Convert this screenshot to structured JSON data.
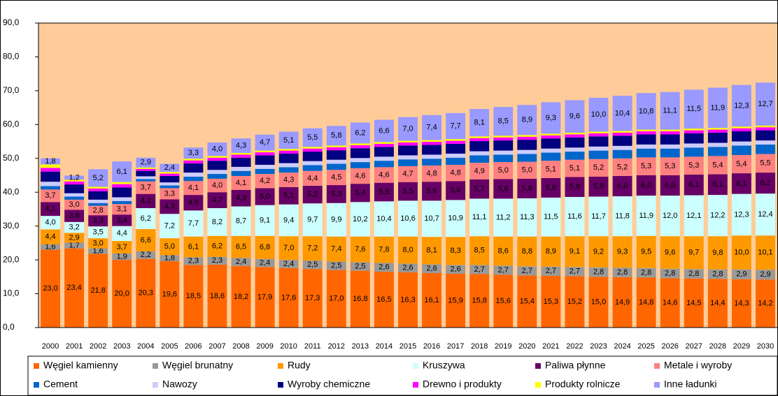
{
  "chart_data": {
    "type": "stacked_bar",
    "categories": [
      "2000",
      "2001",
      "2002",
      "2003",
      "2004",
      "2005",
      "2006",
      "2007",
      "2008",
      "2009",
      "2010",
      "2011",
      "2012",
      "2013",
      "2014",
      "2015",
      "2016",
      "2017",
      "2018",
      "2019",
      "2020",
      "2021",
      "2022",
      "2023",
      "2024",
      "2025",
      "2026",
      "2027",
      "2028",
      "2029",
      "2030"
    ],
    "ylim": [
      0,
      90
    ],
    "yticks": [
      {
        "value": 0,
        "label": "0,0"
      },
      {
        "value": 10,
        "label": "10,0"
      },
      {
        "value": 20,
        "label": "20,0"
      },
      {
        "value": 30,
        "label": "30,0"
      },
      {
        "value": 40,
        "label": "40,0"
      },
      {
        "value": 50,
        "label": "50,0"
      },
      {
        "value": 60,
        "label": "60,0"
      },
      {
        "value": 70,
        "label": "70,0"
      },
      {
        "value": 80,
        "label": "80,0"
      },
      {
        "value": 90,
        "label": "90,0"
      }
    ],
    "plot_background": "#ffcc99",
    "legend": "bottom",
    "series": [
      {
        "name": "Węgiel kamienny",
        "color": "#ff6600",
        "values": [
          23.0,
          23.4,
          21.8,
          20.0,
          20.3,
          19.6,
          18.5,
          18.6,
          18.2,
          17.9,
          17.6,
          17.3,
          17.0,
          16.8,
          16.5,
          16.3,
          16.1,
          15.9,
          15.8,
          15.6,
          15.4,
          15.3,
          15.2,
          15.0,
          14.9,
          14.8,
          14.6,
          14.5,
          14.4,
          14.3,
          14.2
        ],
        "value_labels": [
          "23,0",
          "23,4",
          "21,8",
          "20,0",
          "20,3",
          "19,6",
          "18,5",
          "18,6",
          "18,2",
          "17,9",
          "17,6",
          "17,3",
          "17,0",
          "16,8",
          "16,5",
          "16,3",
          "16,1",
          "15,9",
          "15,8",
          "15,6",
          "15,4",
          "15,3",
          "15,2",
          "15,0",
          "14,9",
          "14,8",
          "14,6",
          "14,5",
          "14,4",
          "14,3",
          "14,2"
        ]
      },
      {
        "name": "Węgiel brunatny",
        "color": "#999999",
        "values": [
          1.6,
          1.7,
          1.6,
          1.9,
          2.2,
          1.8,
          2.3,
          2.3,
          2.4,
          2.4,
          2.4,
          2.5,
          2.5,
          2.5,
          2.6,
          2.6,
          2.6,
          2.6,
          2.7,
          2.7,
          2.7,
          2.7,
          2.7,
          2.8,
          2.8,
          2.8,
          2.8,
          2.8,
          2.8,
          2.9,
          2.9
        ],
        "value_labels": [
          "1,6",
          "1,7",
          "1,6",
          "1,9",
          "2,2",
          "1,8",
          "2,3",
          "2,3",
          "2,4",
          "2,4",
          "2,4",
          "2,5",
          "2,5",
          "2,5",
          "2,6",
          "2,6",
          "2,6",
          "2,6",
          "2,7",
          "2,7",
          "2,7",
          "2,7",
          "2,7",
          "2,8",
          "2,8",
          "2,8",
          "2,8",
          "2,8",
          "2,8",
          "2,9",
          "2,9"
        ]
      },
      {
        "name": "Rudy",
        "color": "#ff9900",
        "values": [
          4.4,
          2.9,
          3.0,
          3.7,
          6.6,
          5.0,
          6.1,
          6.2,
          6.5,
          6.8,
          7.0,
          7.2,
          7.4,
          7.6,
          7.8,
          8.0,
          8.1,
          8.3,
          8.5,
          8.6,
          8.8,
          8.9,
          9.1,
          9.2,
          9.3,
          9.5,
          9.6,
          9.7,
          9.8,
          10.0,
          10.1
        ],
        "value_labels": [
          "4,4",
          "2,9",
          "3,0",
          "3,7",
          "6,6",
          "5,0",
          "6,1",
          "6,2",
          "6,5",
          "6,8",
          "7,0",
          "7,2",
          "7,4",
          "7,6",
          "7,8",
          "8,0",
          "8,1",
          "8,3",
          "8,5",
          "8,6",
          "8,8",
          "8,9",
          "9,1",
          "9,2",
          "9,3",
          "9,5",
          "9,6",
          "9,7",
          "9,8",
          "10,0",
          "10,1"
        ]
      },
      {
        "name": "Kruszywa",
        "color": "#ccffff",
        "values": [
          4.0,
          3.2,
          3.5,
          4.4,
          6.2,
          7.2,
          7.7,
          8.2,
          8.7,
          9.1,
          9.4,
          9.7,
          9.9,
          10.2,
          10.4,
          10.6,
          10.7,
          10.9,
          11.1,
          11.2,
          11.3,
          11.5,
          11.6,
          11.7,
          11.8,
          11.9,
          12.0,
          12.1,
          12.2,
          12.3,
          12.4
        ],
        "value_labels": [
          "4,0",
          "3,2",
          "3,5",
          "4,4",
          "6,2",
          "7,2",
          "7,7",
          "8,2",
          "8,7",
          "9,1",
          "9,4",
          "9,7",
          "9,9",
          "10,2",
          "10,4",
          "10,6",
          "10,7",
          "10,9",
          "11,1",
          "11,2",
          "11,3",
          "11,5",
          "11,6",
          "11,7",
          "11,8",
          "11,9",
          "12,0",
          "12,1",
          "12,2",
          "12,3",
          "12,4"
        ]
      },
      {
        "name": "Paliwa płynne",
        "color": "#660066",
        "values": [
          4.1,
          3.6,
          3.3,
          3.4,
          4.2,
          4.3,
          4.6,
          4.7,
          4.9,
          5.0,
          5.1,
          5.2,
          5.3,
          5.4,
          5.5,
          5.5,
          5.6,
          5.6,
          5.7,
          5.8,
          5.8,
          5.8,
          5.9,
          5.9,
          6.0,
          6.0,
          6.0,
          6.1,
          6.1,
          6.1,
          6.2
        ],
        "value_labels": [
          "4,1",
          "3,6",
          "3,3",
          "3,4",
          "4,2",
          "4,3",
          "4,6",
          "4,7",
          "4,9",
          "5,0",
          "5,1",
          "5,2",
          "5,3",
          "5,4",
          "5,5",
          "5,5",
          "5,6",
          "5,6",
          "5,7",
          "5,8",
          "5,8",
          "5,8",
          "5,9",
          "5,9",
          "6,0",
          "6,0",
          "6,0",
          "6,1",
          "6,1",
          "6,1",
          "6,2"
        ]
      },
      {
        "name": "Metale i wyroby",
        "color": "#ff8080",
        "values": [
          3.7,
          3.0,
          2.8,
          3.1,
          3.7,
          3.3,
          4.1,
          4.0,
          4.1,
          4.2,
          4.3,
          4.4,
          4.5,
          4.6,
          4.6,
          4.7,
          4.8,
          4.8,
          4.9,
          5.0,
          5.0,
          5.1,
          5.1,
          5.2,
          5.2,
          5.3,
          5.3,
          5.3,
          5.4,
          5.4,
          5.5
        ],
        "value_labels": [
          "3,7",
          "3,0",
          "2,8",
          "3,1",
          "3,7",
          "3,3",
          "4,1",
          "4,0",
          "4,1",
          "4,2",
          "4,3",
          "4,4",
          "4,5",
          "4,6",
          "4,6",
          "4,7",
          "4,8",
          "4,8",
          "4,9",
          "5,0",
          "5,0",
          "5,1",
          "5,1",
          "5,2",
          "5,2",
          "5,3",
          "5,3",
          "5,3",
          "5,4",
          "5,4",
          "5,5"
        ]
      },
      {
        "name": "Cement",
        "color": "#0066cc",
        "values": [
          1.0,
          0.9,
          0.8,
          0.9,
          0.7,
          0.8,
          1.3,
          1.4,
          1.5,
          1.5,
          1.6,
          1.7,
          1.8,
          1.8,
          1.9,
          2.0,
          2.0,
          2.1,
          2.2,
          2.2,
          2.3,
          2.4,
          2.4,
          2.5,
          2.5,
          2.6,
          2.6,
          2.7,
          2.7,
          2.8,
          2.8
        ]
      },
      {
        "name": "Nawozy",
        "color": "#ccccff",
        "values": [
          1.3,
          1.0,
          1.0,
          1.1,
          0.8,
          0.9,
          1.2,
          1.2,
          1.2,
          1.2,
          1.2,
          1.2,
          1.2,
          1.2,
          1.2,
          1.2,
          1.2,
          1.2,
          1.2,
          1.2,
          1.2,
          1.2,
          1.2,
          1.2,
          1.2,
          1.2,
          1.2,
          1.2,
          1.2,
          1.2,
          1.2
        ]
      },
      {
        "name": "Wyroby chemiczne",
        "color": "#000080",
        "values": [
          3.0,
          2.6,
          2.5,
          2.9,
          1.6,
          1.9,
          2.7,
          2.7,
          2.7,
          2.8,
          2.8,
          2.8,
          2.8,
          2.9,
          2.9,
          2.9,
          2.9,
          2.9,
          3.0,
          3.0,
          3.0,
          3.0,
          3.0,
          3.0,
          3.0,
          3.0,
          3.0,
          3.0,
          3.0,
          3.0,
          3.0
        ]
      },
      {
        "name": "Drewno i produkty",
        "color": "#ff00ff",
        "values": [
          1.1,
          0.9,
          0.8,
          1.0,
          0.6,
          0.7,
          0.9,
          0.9,
          0.9,
          0.9,
          0.9,
          0.9,
          0.9,
          0.9,
          0.9,
          0.9,
          0.9,
          0.9,
          0.9,
          0.9,
          0.9,
          0.9,
          0.9,
          0.9,
          0.9,
          0.9,
          0.9,
          0.9,
          0.9,
          0.9,
          0.9
        ]
      },
      {
        "name": "Produkty rolnicze",
        "color": "#ffff00",
        "values": [
          1.0,
          0.5,
          0.5,
          0.6,
          0.4,
          0.5,
          0.5,
          0.5,
          0.5,
          0.5,
          0.5,
          0.5,
          0.5,
          0.5,
          0.5,
          0.5,
          0.5,
          0.5,
          0.5,
          0.5,
          0.5,
          0.5,
          0.5,
          0.5,
          0.5,
          0.5,
          0.5,
          0.5,
          0.5,
          0.5,
          0.5
        ]
      },
      {
        "name": "Inne ładunki",
        "color": "#9999ff",
        "values": [
          1.8,
          1.2,
          5.2,
          6.1,
          2.9,
          2.4,
          3.3,
          4.0,
          4.3,
          4.7,
          5.1,
          5.5,
          5.8,
          6.2,
          6.6,
          7.0,
          7.4,
          7.7,
          8.1,
          8.5,
          8.9,
          9.3,
          9.6,
          10.0,
          10.4,
          10.8,
          11.1,
          11.5,
          11.9,
          12.3,
          12.7
        ],
        "value_labels": [
          "1,8",
          "1,2",
          "5,2",
          "6,1",
          "2,9",
          "2,4",
          "3,3",
          "4,0",
          "4,3",
          "4,7",
          "5,1",
          "5,5",
          "5,8",
          "6,2",
          "6,6",
          "7,0",
          "7,4",
          "7,7",
          "8,1",
          "8,5",
          "8,9",
          "9,3",
          "9,6",
          "10,0",
          "10,4",
          "10,8",
          "11,1",
          "11,5",
          "11,9",
          "12,3",
          "12,7"
        ]
      }
    ]
  }
}
